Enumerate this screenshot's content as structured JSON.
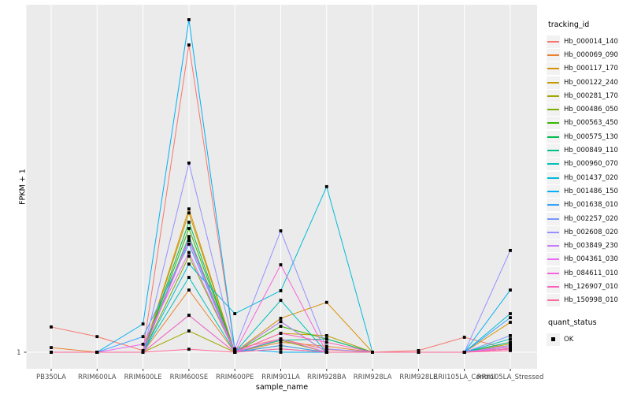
{
  "figure": {
    "background": "#FFFFFF",
    "panel_background": "#EBEBEB",
    "gridline_color": "#FFFFFF",
    "tick_color": "#333333",
    "axis_tick_text_color": "#4D4D4D",
    "axis_title_color": "#000000",
    "point_color": "#000000",
    "legend_key_background": "#F2F2F2"
  },
  "chart_data": {
    "type": "line",
    "title": "",
    "xlabel": "sample_name",
    "ylabel": "FPKM + 1",
    "grid": "major-vertical-per-category, single horizontal line at y tick 1",
    "legend_position": "right",
    "y_axis": {
      "tick_labels": [
        "1"
      ],
      "note": "Log-style axis: only the value 1 is labeled at the baseline. Series values are relative heights, 0 = baseline at '1', 1 = top of panel (the tallest peak)."
    },
    "categories": [
      "PB350LA",
      "RRIM600LA",
      "RRIM600LE",
      "RRIM600SE",
      "RRIM600PE",
      "RRIM901LA",
      "RRIM928BA",
      "RRIM928LA",
      "RRIM928LE",
      "RRII105LA_Control",
      "RRII105LA_Stressed"
    ],
    "legend": {
      "title": "tracking_id"
    },
    "legend2": {
      "title": "quant_status",
      "entries": [
        {
          "label": "OK",
          "marker": "black-square"
        }
      ]
    },
    "series": [
      {
        "name": "Hb_000014_140",
        "color": "#F8766D",
        "values": [
          0.076,
          0.047,
          0.005,
          0.924,
          0.01,
          0.04,
          0.008,
          0.0,
          0.005,
          0.045,
          0.008
        ]
      },
      {
        "name": "Hb_000069_090",
        "color": "#EA8331",
        "values": [
          0.014,
          0.0,
          0.0,
          0.187,
          0.0,
          0.03,
          0.018,
          0.0,
          0.0,
          0.0,
          0.03
        ]
      },
      {
        "name": "Hb_000117_170",
        "color": "#D89000",
        "values": [
          0.0,
          0.0,
          0.0,
          0.431,
          0.0,
          0.102,
          0.15,
          0.0,
          0.0,
          0.0,
          0.09
        ]
      },
      {
        "name": "Hb_000122_240",
        "color": "#C09B00",
        "values": [
          0.0,
          0.0,
          0.0,
          0.419,
          0.0,
          0.057,
          0.05,
          0.0,
          0.0,
          0.0,
          0.025
        ]
      },
      {
        "name": "Hb_000281_170",
        "color": "#A3A500",
        "values": [
          0.0,
          0.0,
          0.0,
          0.064,
          0.0,
          0.02,
          0.0,
          0.0,
          0.0,
          0.0,
          0.015
        ]
      },
      {
        "name": "Hb_000486_050",
        "color": "#7CAE00",
        "values": [
          0.0,
          0.0,
          0.0,
          0.289,
          0.0,
          0.036,
          0.0,
          0.0,
          0.0,
          0.0,
          0.01
        ]
      },
      {
        "name": "Hb_000563_450",
        "color": "#39B600",
        "values": [
          0.0,
          0.0,
          0.0,
          0.372,
          0.0,
          0.078,
          0.04,
          0.0,
          0.0,
          0.0,
          0.01
        ]
      },
      {
        "name": "Hb_000575_130",
        "color": "#00BB4E",
        "values": [
          0.0,
          0.0,
          0.0,
          0.391,
          0.0,
          0.092,
          0.0,
          0.0,
          0.0,
          0.0,
          0.02
        ]
      },
      {
        "name": "Hb_000849_110",
        "color": "#00C087",
        "values": [
          0.0,
          0.0,
          0.0,
          0.348,
          0.0,
          0.036,
          0.04,
          0.0,
          0.0,
          0.0,
          0.03
        ]
      },
      {
        "name": "Hb_000960_070",
        "color": "#00C0B8",
        "values": [
          0.0,
          0.0,
          0.0,
          0.225,
          0.0,
          0.156,
          0.0,
          0.0,
          0.0,
          0.0,
          0.04
        ]
      },
      {
        "name": "Hb_001437_020",
        "color": "#00BCD8",
        "values": [
          0.0,
          0.0,
          0.0,
          0.265,
          0.116,
          0.185,
          0.498,
          0.0,
          0.0,
          0.0,
          0.116
        ]
      },
      {
        "name": "Hb_001486_150",
        "color": "#00B0F6",
        "values": [
          0.0,
          0.0,
          0.085,
          1.0,
          0.009,
          0.0,
          0.0,
          0.0,
          0.0,
          0.0,
          0.187
        ]
      },
      {
        "name": "Hb_001638_010",
        "color": "#35A2FF",
        "values": [
          0.0,
          0.0,
          0.047,
          0.325,
          0.0,
          0.02,
          0.0,
          0.0,
          0.0,
          0.0,
          0.104
        ]
      },
      {
        "name": "Hb_002257_020",
        "color": "#7997FF",
        "values": [
          0.0,
          0.0,
          0.0,
          0.111,
          0.0,
          0.01,
          0.0,
          0.0,
          0.0,
          0.0,
          0.05
        ]
      },
      {
        "name": "Hb_002608_020",
        "color": "#9590FF",
        "values": [
          0.0,
          0.0,
          0.0,
          0.569,
          0.01,
          0.365,
          0.01,
          0.0,
          0.0,
          0.0,
          0.306
        ]
      },
      {
        "name": "Hb_003849_230",
        "color": "#C77CFF",
        "values": [
          0.0,
          0.0,
          0.0,
          0.336,
          0.0,
          0.092,
          0.0,
          0.0,
          0.0,
          0.0,
          0.02
        ]
      },
      {
        "name": "Hb_004361_030",
        "color": "#E76BF3",
        "values": [
          0.0,
          0.0,
          0.024,
          0.3,
          0.0,
          0.04,
          0.0,
          0.0,
          0.0,
          0.0,
          0.015
        ]
      },
      {
        "name": "Hb_084611_010",
        "color": "#FA62DB",
        "values": [
          0.0,
          0.0,
          0.0,
          0.34,
          0.0,
          0.263,
          0.0,
          0.0,
          0.0,
          0.0,
          0.01
        ]
      },
      {
        "name": "Hb_126907_010",
        "color": "#FF62BC",
        "values": [
          0.0,
          0.0,
          0.0,
          0.111,
          0.0,
          0.057,
          0.03,
          0.0,
          0.0,
          0.0,
          0.01
        ]
      },
      {
        "name": "Hb_150998_010",
        "color": "#FF6A98",
        "values": [
          0.0,
          0.0,
          0.0,
          0.009,
          0.0,
          0.01,
          0.0,
          0.0,
          0.0,
          0.0,
          0.005
        ]
      }
    ]
  }
}
